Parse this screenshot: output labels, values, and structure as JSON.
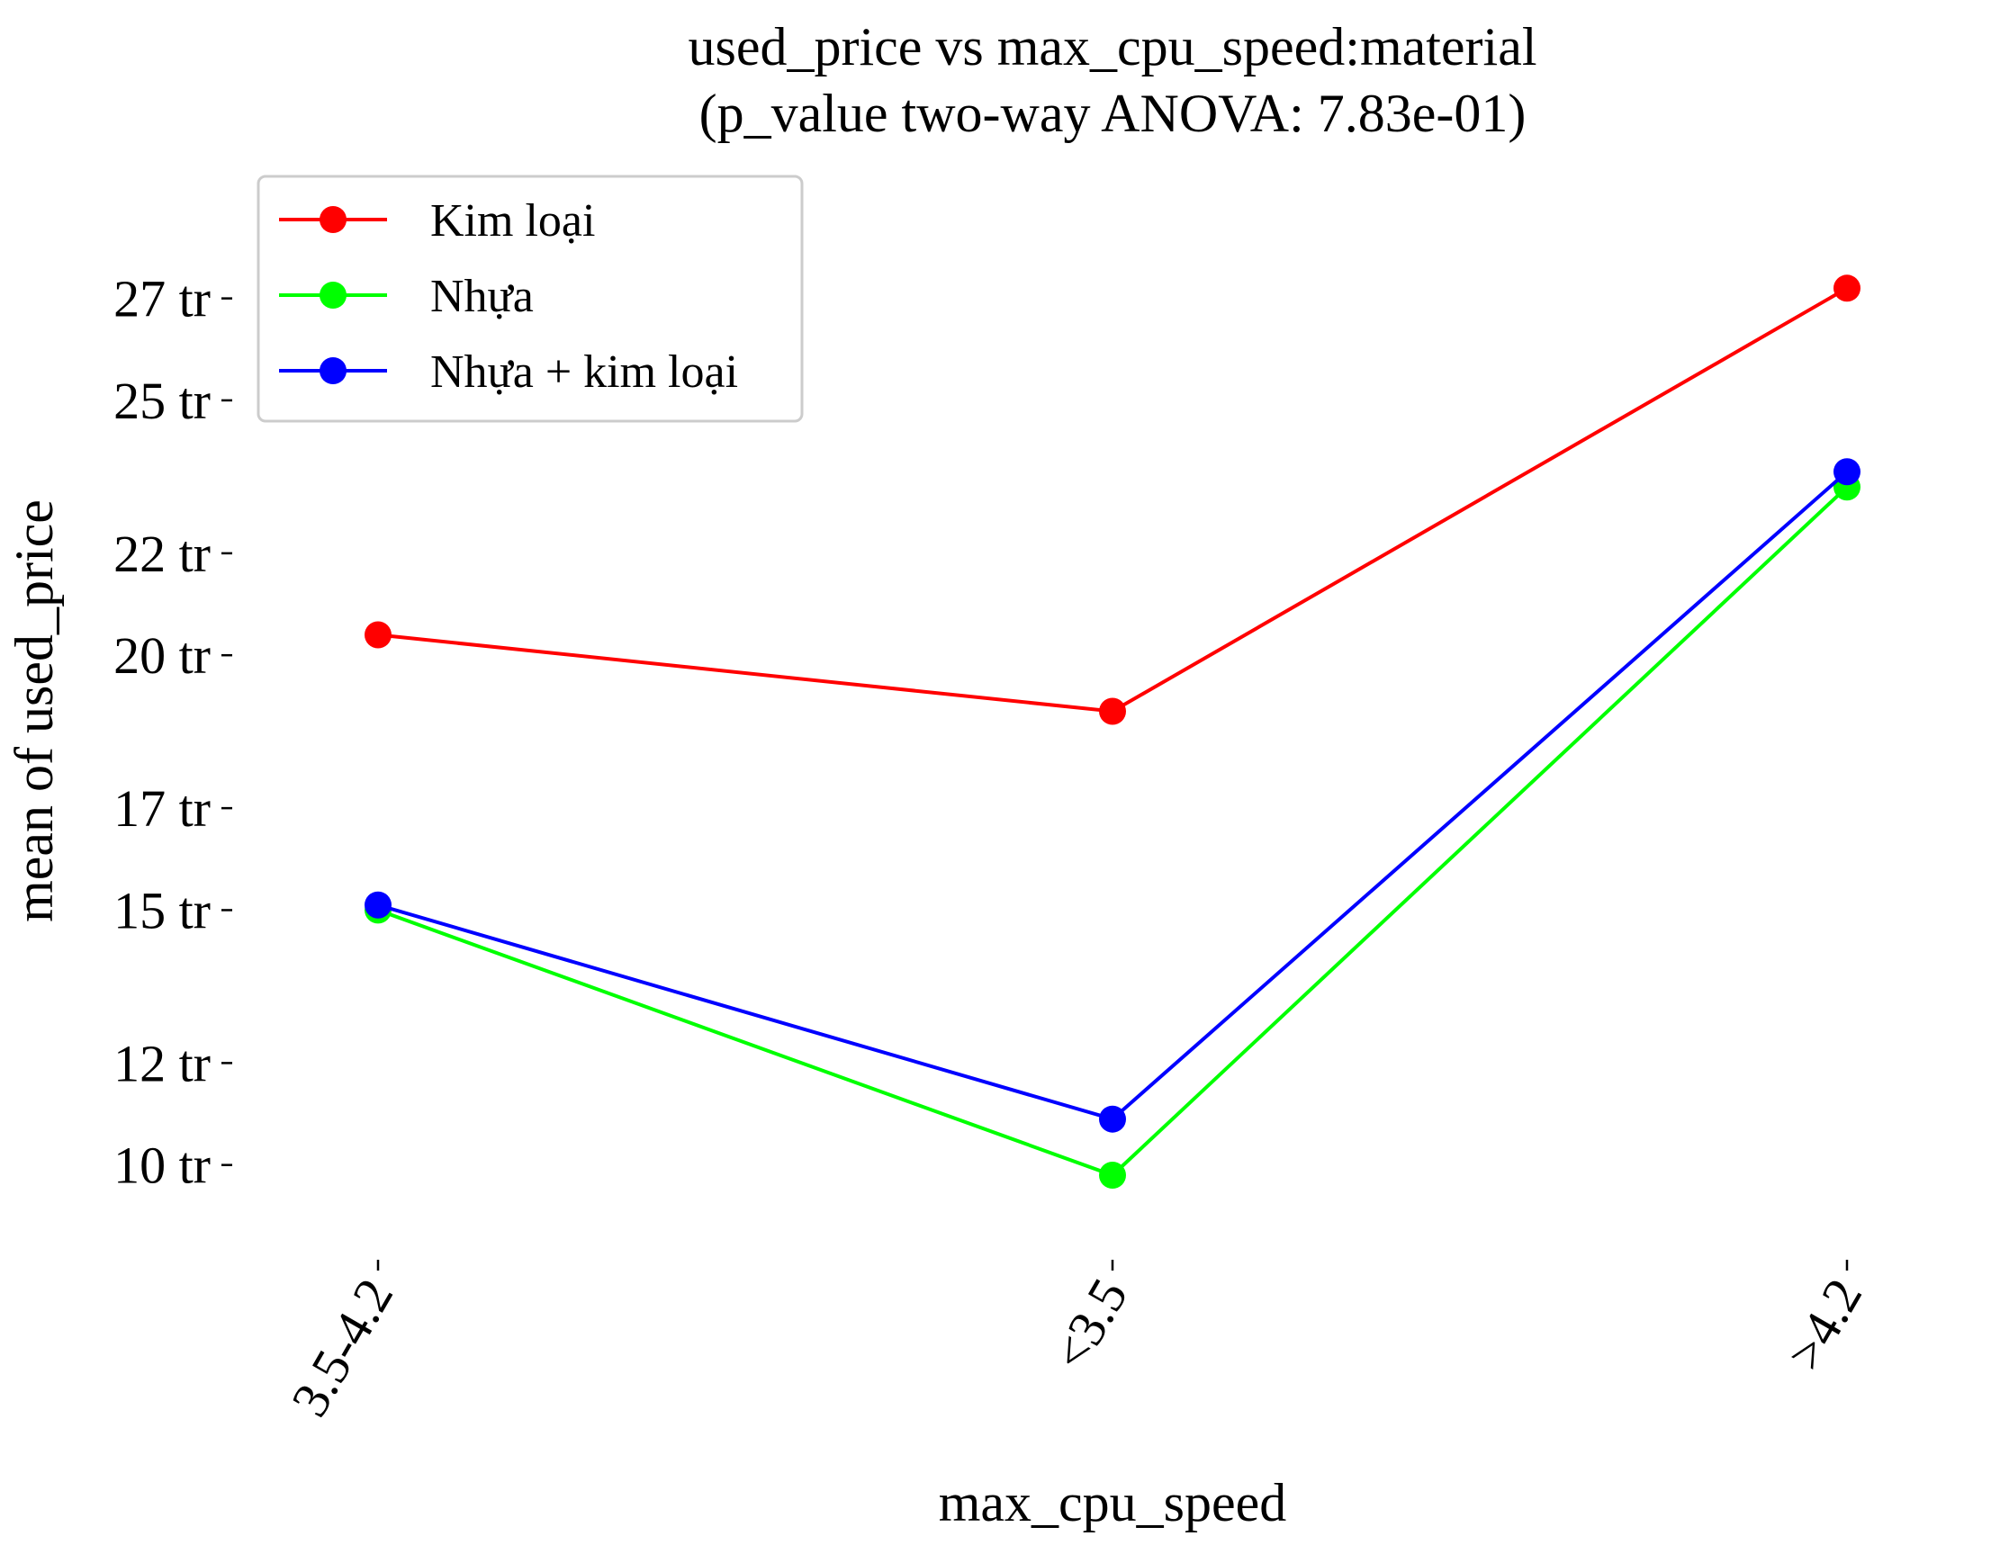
{
  "chart_data": {
    "type": "line",
    "title": "used_price vs max_cpu_speed:material",
    "subtitle": "(p_value two-way ANOVA: 7.83e-01)",
    "xlabel": "max_cpu_speed",
    "ylabel": "mean of used_price",
    "categories": [
      "3.5-4.2",
      "<3.5",
      ">4.2"
    ],
    "yticks": [
      10,
      12,
      15,
      17,
      20,
      22,
      25,
      27
    ],
    "ytick_labels": [
      "10 tr",
      "12 tr",
      "15 tr",
      "17 tr",
      "20 tr",
      "22 tr",
      "25 tr",
      "27 tr"
    ],
    "ylim": [
      8.6,
      29.2
    ],
    "grid": false,
    "legend_position": "top-left",
    "series": [
      {
        "name": "Kim loại",
        "color": "#ff0000",
        "values": [
          20.4,
          18.9,
          27.2
        ]
      },
      {
        "name": "Nhựa",
        "color": "#00ff00",
        "values": [
          15.0,
          9.8,
          23.3
        ]
      },
      {
        "name": "Nhựa + kim loại",
        "color": "#0000ff",
        "values": [
          15.1,
          10.9,
          23.6
        ]
      }
    ]
  }
}
